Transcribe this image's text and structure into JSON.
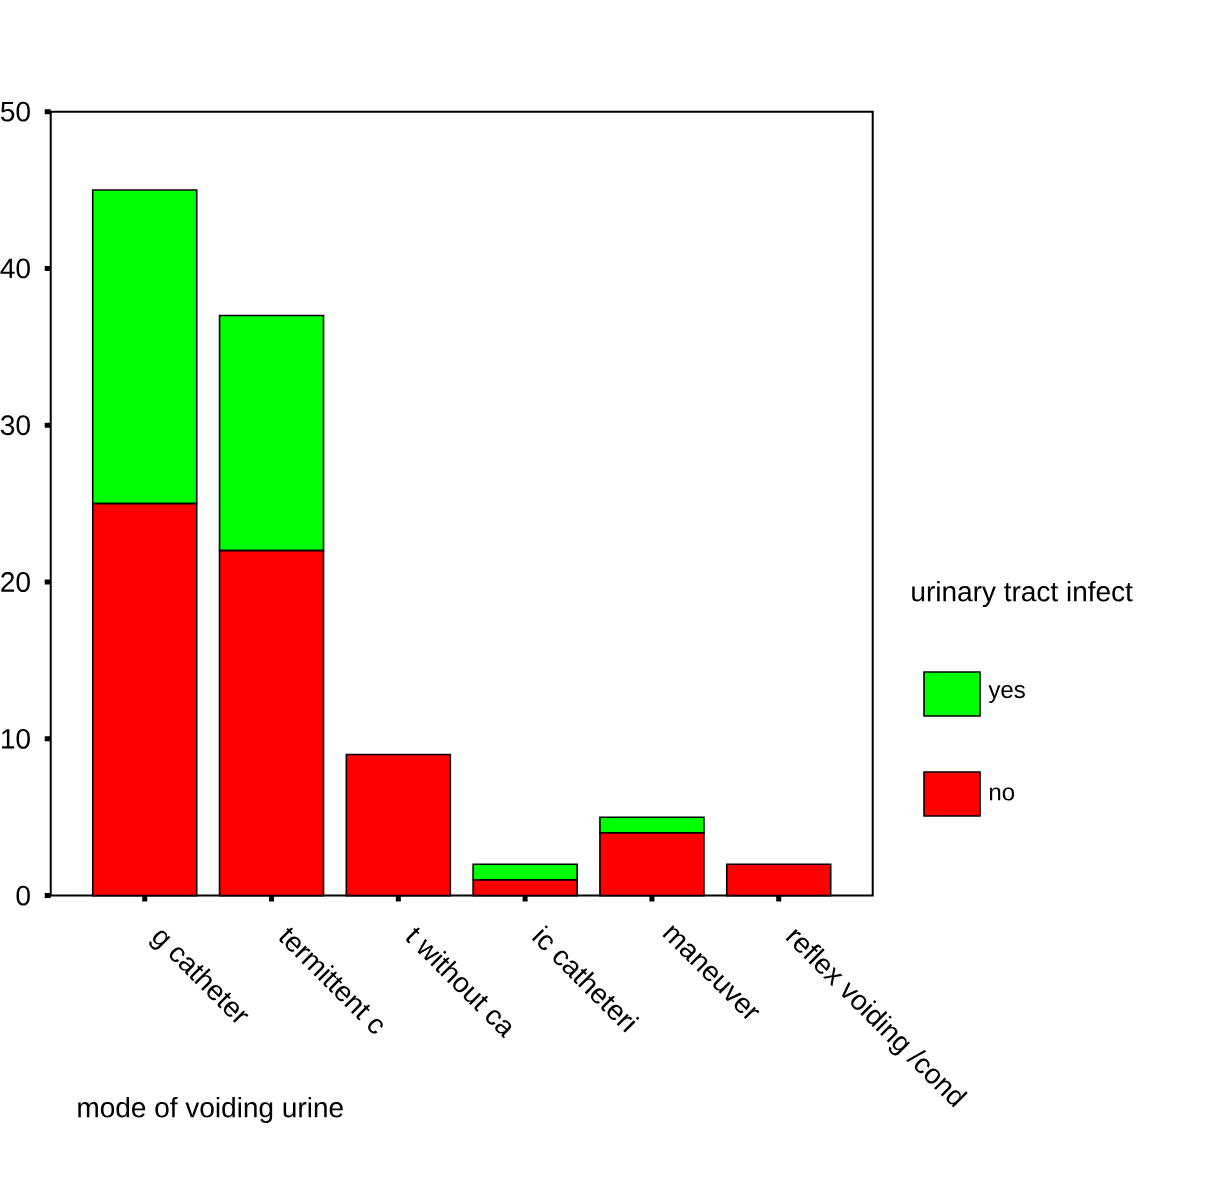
{
  "chart_data": {
    "type": "bar",
    "stacked": true,
    "xlabel": "mode of voiding urine",
    "legend_title": "urinary tract infect",
    "legend": "right",
    "categories": [
      "g catheter",
      "termittent c",
      "t without ca",
      "ic catheteri",
      "maneuver",
      "reflex voiding /cond"
    ],
    "series": [
      {
        "name": "no",
        "color": "#ff0000",
        "values": [
          25,
          22,
          9,
          1,
          4,
          2
        ]
      },
      {
        "name": "yes",
        "color": "#00ff00",
        "values": [
          20,
          15,
          0,
          1,
          1,
          0
        ]
      }
    ],
    "ylim": [
      0,
      50
    ],
    "yticks": [
      0,
      10,
      20,
      30,
      40,
      50
    ]
  }
}
